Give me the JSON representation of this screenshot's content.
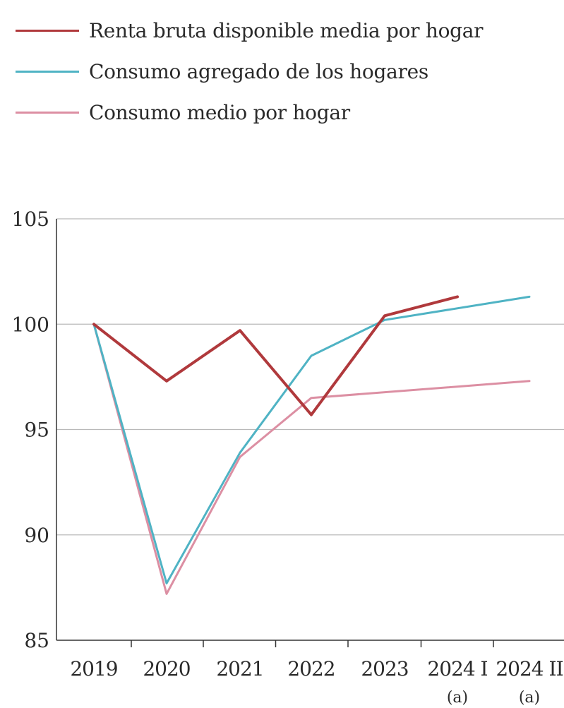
{
  "chart_data": {
    "type": "line",
    "title": "",
    "xlabel": "",
    "ylabel": "",
    "categories": [
      "2019",
      "2020",
      "2021",
      "2022",
      "2023",
      "2024 I",
      "2024 II"
    ],
    "category_notes": [
      "",
      "",
      "",
      "",
      "",
      "(a)",
      "(a)"
    ],
    "ylim": [
      85,
      105
    ],
    "yticks": [
      "105",
      "100",
      "95",
      "90",
      "85"
    ],
    "grid": true,
    "legend_position": "top-left",
    "series": [
      {
        "name": "Renta bruta disponible media por hogar",
        "color": "#b0393c",
        "values": [
          100,
          97.3,
          99.7,
          95.7,
          100.4,
          101.3,
          null
        ]
      },
      {
        "name": "Consumo agregado de los hogares",
        "color": "#4fb3c4",
        "values": [
          100,
          87.7,
          93.9,
          98.5,
          100.2,
          null,
          101.3
        ]
      },
      {
        "name": "Consumo medio por hogar",
        "color": "#dc8fa3",
        "values": [
          100,
          87.2,
          93.7,
          96.5,
          null,
          null,
          97.3
        ]
      }
    ]
  }
}
